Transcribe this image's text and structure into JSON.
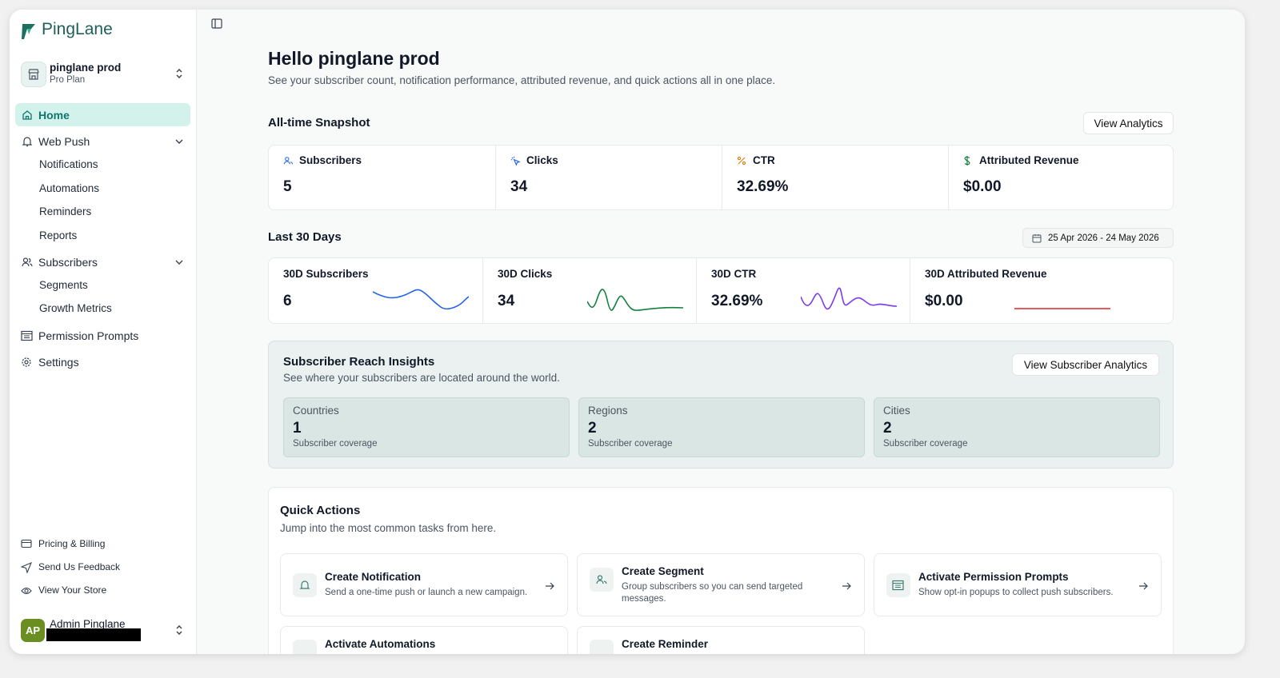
{
  "sidebar": {
    "brand": "PingLane",
    "workspace": {
      "name": "pinglane prod",
      "plan": "Pro Plan"
    },
    "nav": [
      {
        "label": "Home"
      },
      {
        "label": "Web Push",
        "children": [
          "Notifications",
          "Automations",
          "Reminders",
          "Reports"
        ]
      },
      {
        "label": "Subscribers",
        "children": [
          "Segments",
          "Growth Metrics"
        ]
      },
      {
        "label": "Permission Prompts"
      },
      {
        "label": "Settings"
      }
    ],
    "footer_links": [
      "Pricing & Billing",
      "Send Us Feedback",
      "View Your Store"
    ],
    "user": {
      "initials": "AP",
      "name": "Admin Pinglane"
    }
  },
  "header": {
    "title": "Hello pinglane prod",
    "subtitle": "See your subscriber count, notification performance, attributed revenue, and quick actions all in one place."
  },
  "snapshot": {
    "title": "All-time Snapshot",
    "button": "View Analytics",
    "stats": [
      {
        "label": "Subscribers",
        "value": "5"
      },
      {
        "label": "Clicks",
        "value": "34"
      },
      {
        "label": "CTR",
        "value": "32.69%"
      },
      {
        "label": "Attributed Revenue",
        "value": "$0.00"
      }
    ]
  },
  "last_30_days": {
    "title": "Last 30 Days",
    "date_range": "25 Apr 2026 - 24 May 2026",
    "stats": [
      {
        "label": "30D Subscribers",
        "value": "6"
      },
      {
        "label": "30D Clicks",
        "value": "34"
      },
      {
        "label": "30D CTR",
        "value": "32.69%"
      },
      {
        "label": "30D Attributed Revenue",
        "value": "$0.00"
      }
    ]
  },
  "reach": {
    "title": "Subscriber Reach Insights",
    "subtitle": "See where your subscribers are located around the world.",
    "button": "View Subscriber Analytics",
    "cards": [
      {
        "label": "Countries",
        "value": "1",
        "note": "Subscriber coverage"
      },
      {
        "label": "Regions",
        "value": "2",
        "note": "Subscriber coverage"
      },
      {
        "label": "Cities",
        "value": "2",
        "note": "Subscriber coverage"
      }
    ]
  },
  "quick_actions": {
    "title": "Quick Actions",
    "subtitle": "Jump into the most common tasks from here.",
    "actions": [
      {
        "title": "Create Notification",
        "description": "Send a one-time push or launch a new campaign."
      },
      {
        "title": "Create Segment",
        "description": "Group subscribers so you can send targeted messages."
      },
      {
        "title": "Activate Permission Prompts",
        "description": "Show opt-in popups to collect push subscribers."
      },
      {
        "title": "Activate Automations"
      },
      {
        "title": "Create Reminder"
      }
    ]
  }
}
